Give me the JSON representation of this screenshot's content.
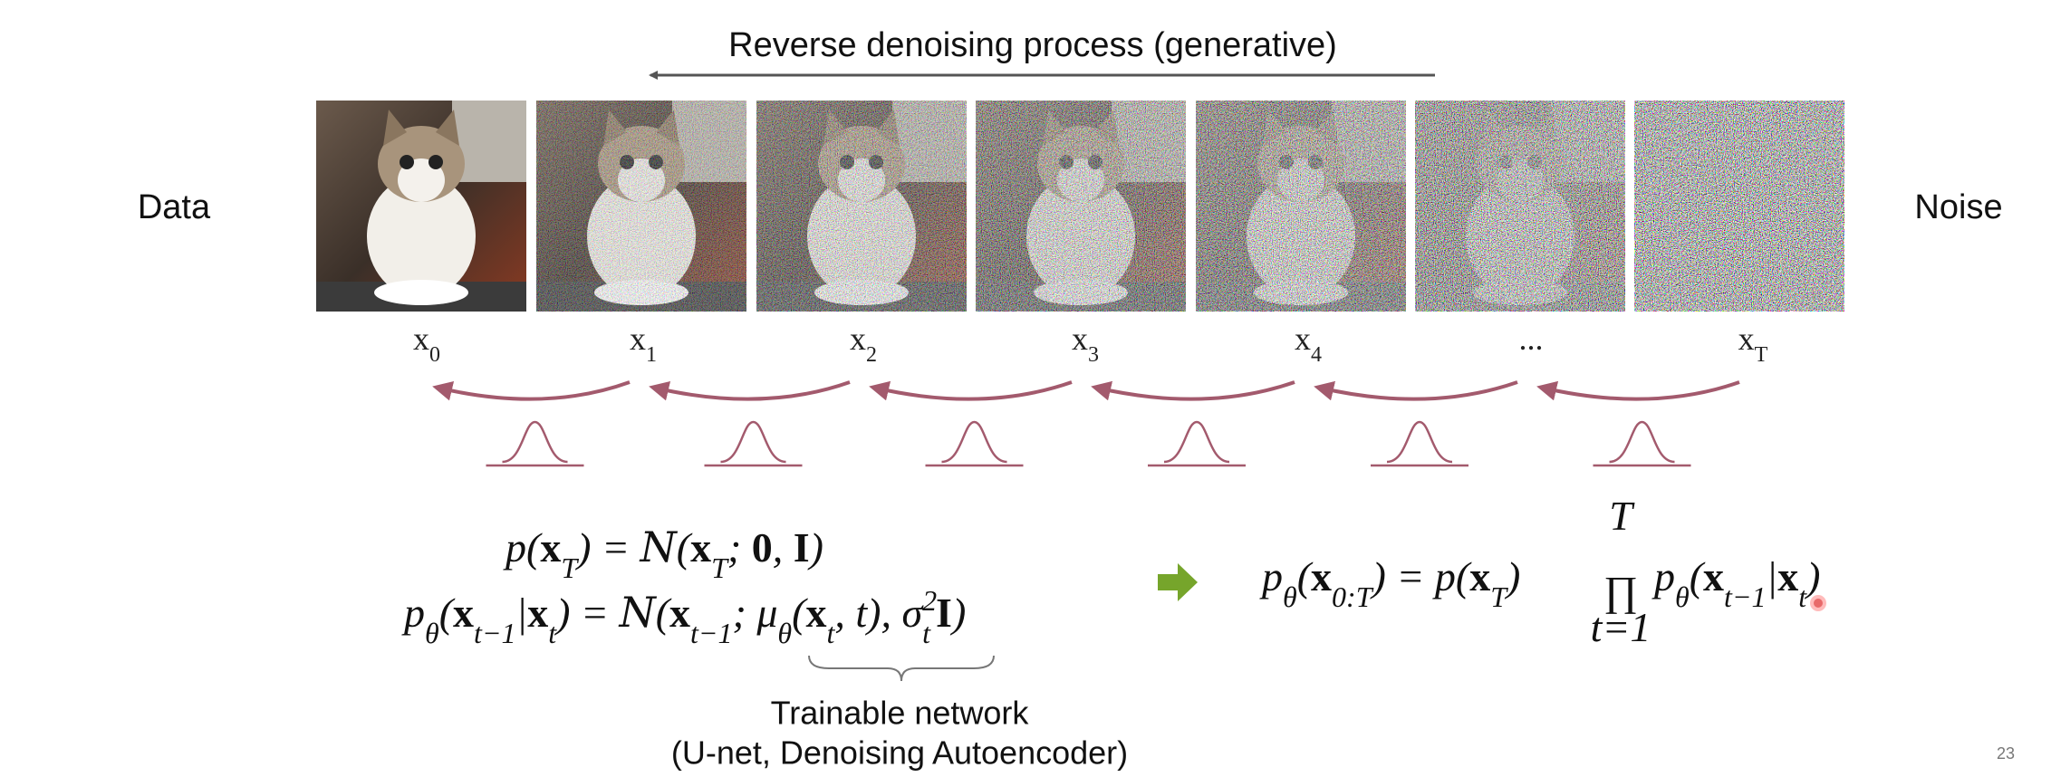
{
  "header": {
    "title": "Reverse denoising process (generative)"
  },
  "side_labels": {
    "left": "Data",
    "right": "Noise"
  },
  "steps": [
    {
      "symbol": "x",
      "index": "0"
    },
    {
      "symbol": "x",
      "index": "1"
    },
    {
      "symbol": "x",
      "index": "2"
    },
    {
      "symbol": "x",
      "index": "3"
    },
    {
      "symbol": "x",
      "index": "4"
    },
    {
      "symbol": "..."
    },
    {
      "symbol": "x",
      "index": "T"
    }
  ],
  "equations": {
    "prior": [
      "p(",
      "x",
      "T",
      ") = ",
      "N",
      "(",
      "x",
      "T",
      "; ",
      "0",
      ", ",
      "I",
      ")"
    ],
    "transition": [
      "p",
      "θ",
      "(",
      "x",
      "t−1",
      "|",
      "x",
      "t",
      ") = ",
      "N",
      "(",
      "x",
      "t−1",
      "; μ",
      "θ",
      "(",
      "x",
      "t",
      ", t), σ",
      "2",
      "t",
      "I",
      ")"
    ],
    "joint": {
      "lhs": [
        "p",
        "θ",
        "(",
        "x",
        "0:T",
        ") = p(",
        "x",
        "T",
        ")"
      ],
      "product": "∏",
      "upper": "T",
      "lower": "t=1",
      "rhs": [
        "p",
        "θ",
        "(",
        "x",
        "t−1",
        "|",
        "x",
        "t",
        ")"
      ]
    }
  },
  "annotation": {
    "line1": "Trainable network",
    "line2": "(U-net, Denoising Autoencoder)"
  },
  "page_number": "23"
}
